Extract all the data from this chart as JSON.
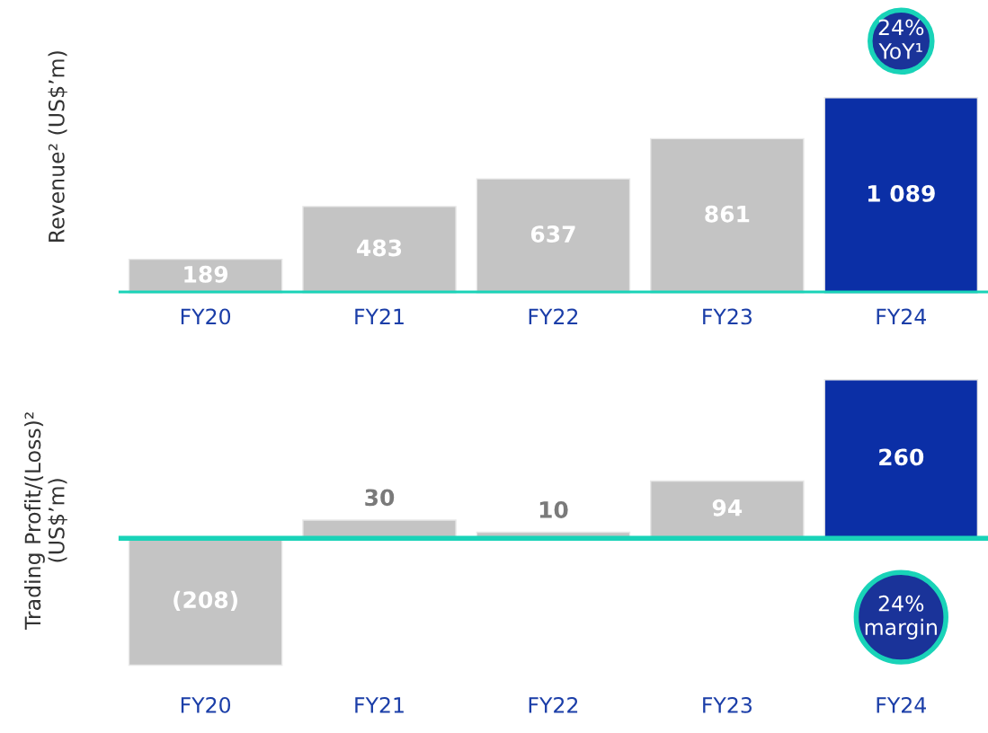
{
  "chart_data": [
    {
      "type": "bar",
      "ylabel": "Revenue² (US$’m)",
      "categories": [
        "FY20",
        "FY21",
        "FY22",
        "FY23",
        "FY24"
      ],
      "values": [
        189,
        483,
        637,
        861,
        1089
      ],
      "value_labels": [
        "189",
        "483",
        "637",
        "861",
        "1 089"
      ],
      "colors": [
        "#c4c4c4",
        "#c4c4c4",
        "#c4c4c4",
        "#c4c4c4",
        "#0b2fa6"
      ],
      "tick_labels": "x",
      "ref_lines": [
        {
          "axis": "y",
          "value": 0,
          "color": "#19d3b8"
        }
      ],
      "annotations": [
        "24%\nYoY¹"
      ]
    },
    {
      "type": "bar",
      "ylabel": "Trading Profit/(Loss)²\n(US$’m)",
      "categories": [
        "FY20",
        "FY21",
        "FY22",
        "FY23",
        "FY24"
      ],
      "values": [
        -208,
        30,
        10,
        94,
        260
      ],
      "value_labels": [
        "(208)",
        "30",
        "10",
        "94",
        "260"
      ],
      "colors": [
        "#c4c4c4",
        "#c4c4c4",
        "#c4c4c4",
        "#c4c4c4",
        "#0b2fa6"
      ],
      "tick_labels": "x",
      "ref_lines": [
        {
          "axis": "y",
          "value": 0,
          "color": "#19d3b8"
        }
      ],
      "annotations": [
        "24%\nmargin"
      ]
    }
  ]
}
